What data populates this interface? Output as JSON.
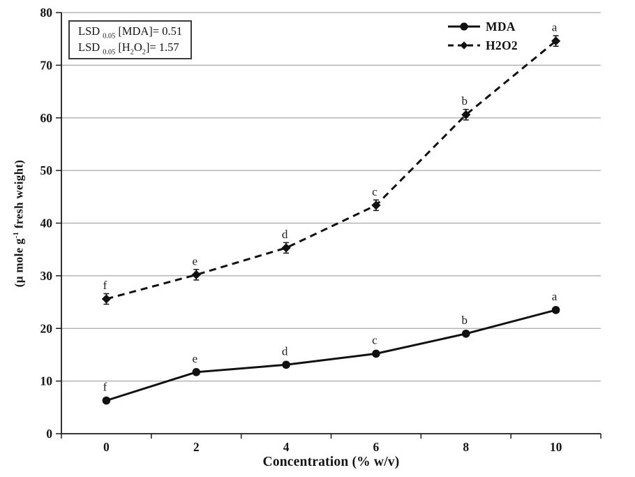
{
  "figure": {
    "background": "#ffffff",
    "colors": {
      "series": "#111111",
      "grid": "#a8a8a8",
      "axis": "#1c1c1c",
      "text": "#141414"
    }
  },
  "annotation_box": {
    "lines": [
      [
        {
          "t": "LSD "
        },
        {
          "t": "0.05",
          "sub": true
        },
        {
          "t": " [MDA]= 0.51"
        }
      ],
      [
        {
          "t": "LSD "
        },
        {
          "t": "0.05",
          "sub": true
        },
        {
          "t": " [H"
        },
        {
          "t": "2",
          "sub": true
        },
        {
          "t": "O"
        },
        {
          "t": "2",
          "sub": true
        },
        {
          "t": "]= 1.57"
        }
      ]
    ]
  },
  "legend": {
    "position": "top-right",
    "items": [
      {
        "label": "MDA",
        "line": "solid",
        "marker": "circle"
      },
      {
        "label": "H2O2",
        "line": "dashed",
        "marker": "diamond"
      }
    ]
  },
  "chart_data": {
    "type": "line",
    "title": "",
    "xlabel": "Concentration (% w/v)",
    "ylabel": "(µ mole g-1 fresh weight)",
    "ylabel_segments": [
      {
        "t": "(µ mole g"
      },
      {
        "t": "-1",
        "sup": true
      },
      {
        "t": " fresh weight)"
      }
    ],
    "categories": [
      "0",
      "2",
      "4",
      "6",
      "8",
      "10"
    ],
    "ylim": [
      0,
      80
    ],
    "ytick_step": 10,
    "yticks": [
      0,
      10,
      20,
      30,
      40,
      50,
      60,
      70,
      80
    ],
    "grid": "horizontal-major",
    "legend_position": "top-right",
    "series": [
      {
        "name": "MDA",
        "line": "solid",
        "marker": "circle",
        "values": [
          6.3,
          11.7,
          13.1,
          15.2,
          19.0,
          23.5
        ],
        "point_labels": [
          "f",
          "e",
          "d",
          "c",
          "b",
          "a"
        ],
        "error": 0.5
      },
      {
        "name": "H2O2",
        "line": "dashed",
        "marker": "diamond",
        "values": [
          25.6,
          30.2,
          35.3,
          43.4,
          60.6,
          74.6
        ],
        "point_labels": [
          "f",
          "e",
          "d",
          "c",
          "b",
          "a"
        ],
        "error": 1.0
      }
    ]
  }
}
